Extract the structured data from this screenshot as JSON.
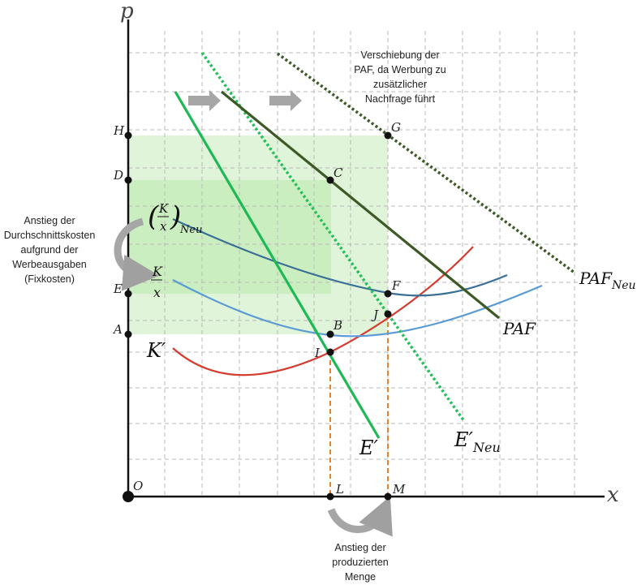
{
  "axes": {
    "y_label": "p",
    "x_label": "x"
  },
  "points": {
    "O": "O",
    "H": "H",
    "D": "D",
    "E": "E",
    "A": "A",
    "C": "C",
    "G": "G",
    "F": "F",
    "J": "J",
    "B": "B",
    "I": "I",
    "L": "L",
    "M": "M"
  },
  "curves": {
    "k_prime": "K′",
    "e_prime": "E′",
    "e_prime_neu_main": "E′",
    "e_prime_neu_sub": "Neu",
    "paf": "PAF",
    "paf_neu_main": "PAF",
    "paf_neu_sub": "Neu",
    "kx_num": "K",
    "kx_den": "x",
    "kx_neu_num": "K",
    "kx_neu_den": "x",
    "kx_neu_sub": "Neu"
  },
  "annotations": {
    "shift_note": [
      "Verschiebung der",
      "PAF, da Werbung zu",
      "zusätzlicher",
      "Nachfrage führt"
    ],
    "cost_note": [
      "Anstieg der",
      "Durchschnittskosten",
      "aufgrund der",
      "Werbeausgaben",
      "(Fixkosten)"
    ],
    "quantity_note": [
      "Anstieg der",
      "produzierten",
      "Menge"
    ]
  },
  "colors": {
    "grid": "#b9b9b9",
    "light_green": "#dbf3d3",
    "mid_green": "#c4ebb7",
    "e_prime": "#1db954",
    "paf": "#3d5a26",
    "k_prime": "#d63b2f",
    "kx": "#5b9bd5",
    "kx_neu": "#3a6f96",
    "dashed_orange": "#e8822f",
    "arrow_gray": "#a6a6a6"
  }
}
